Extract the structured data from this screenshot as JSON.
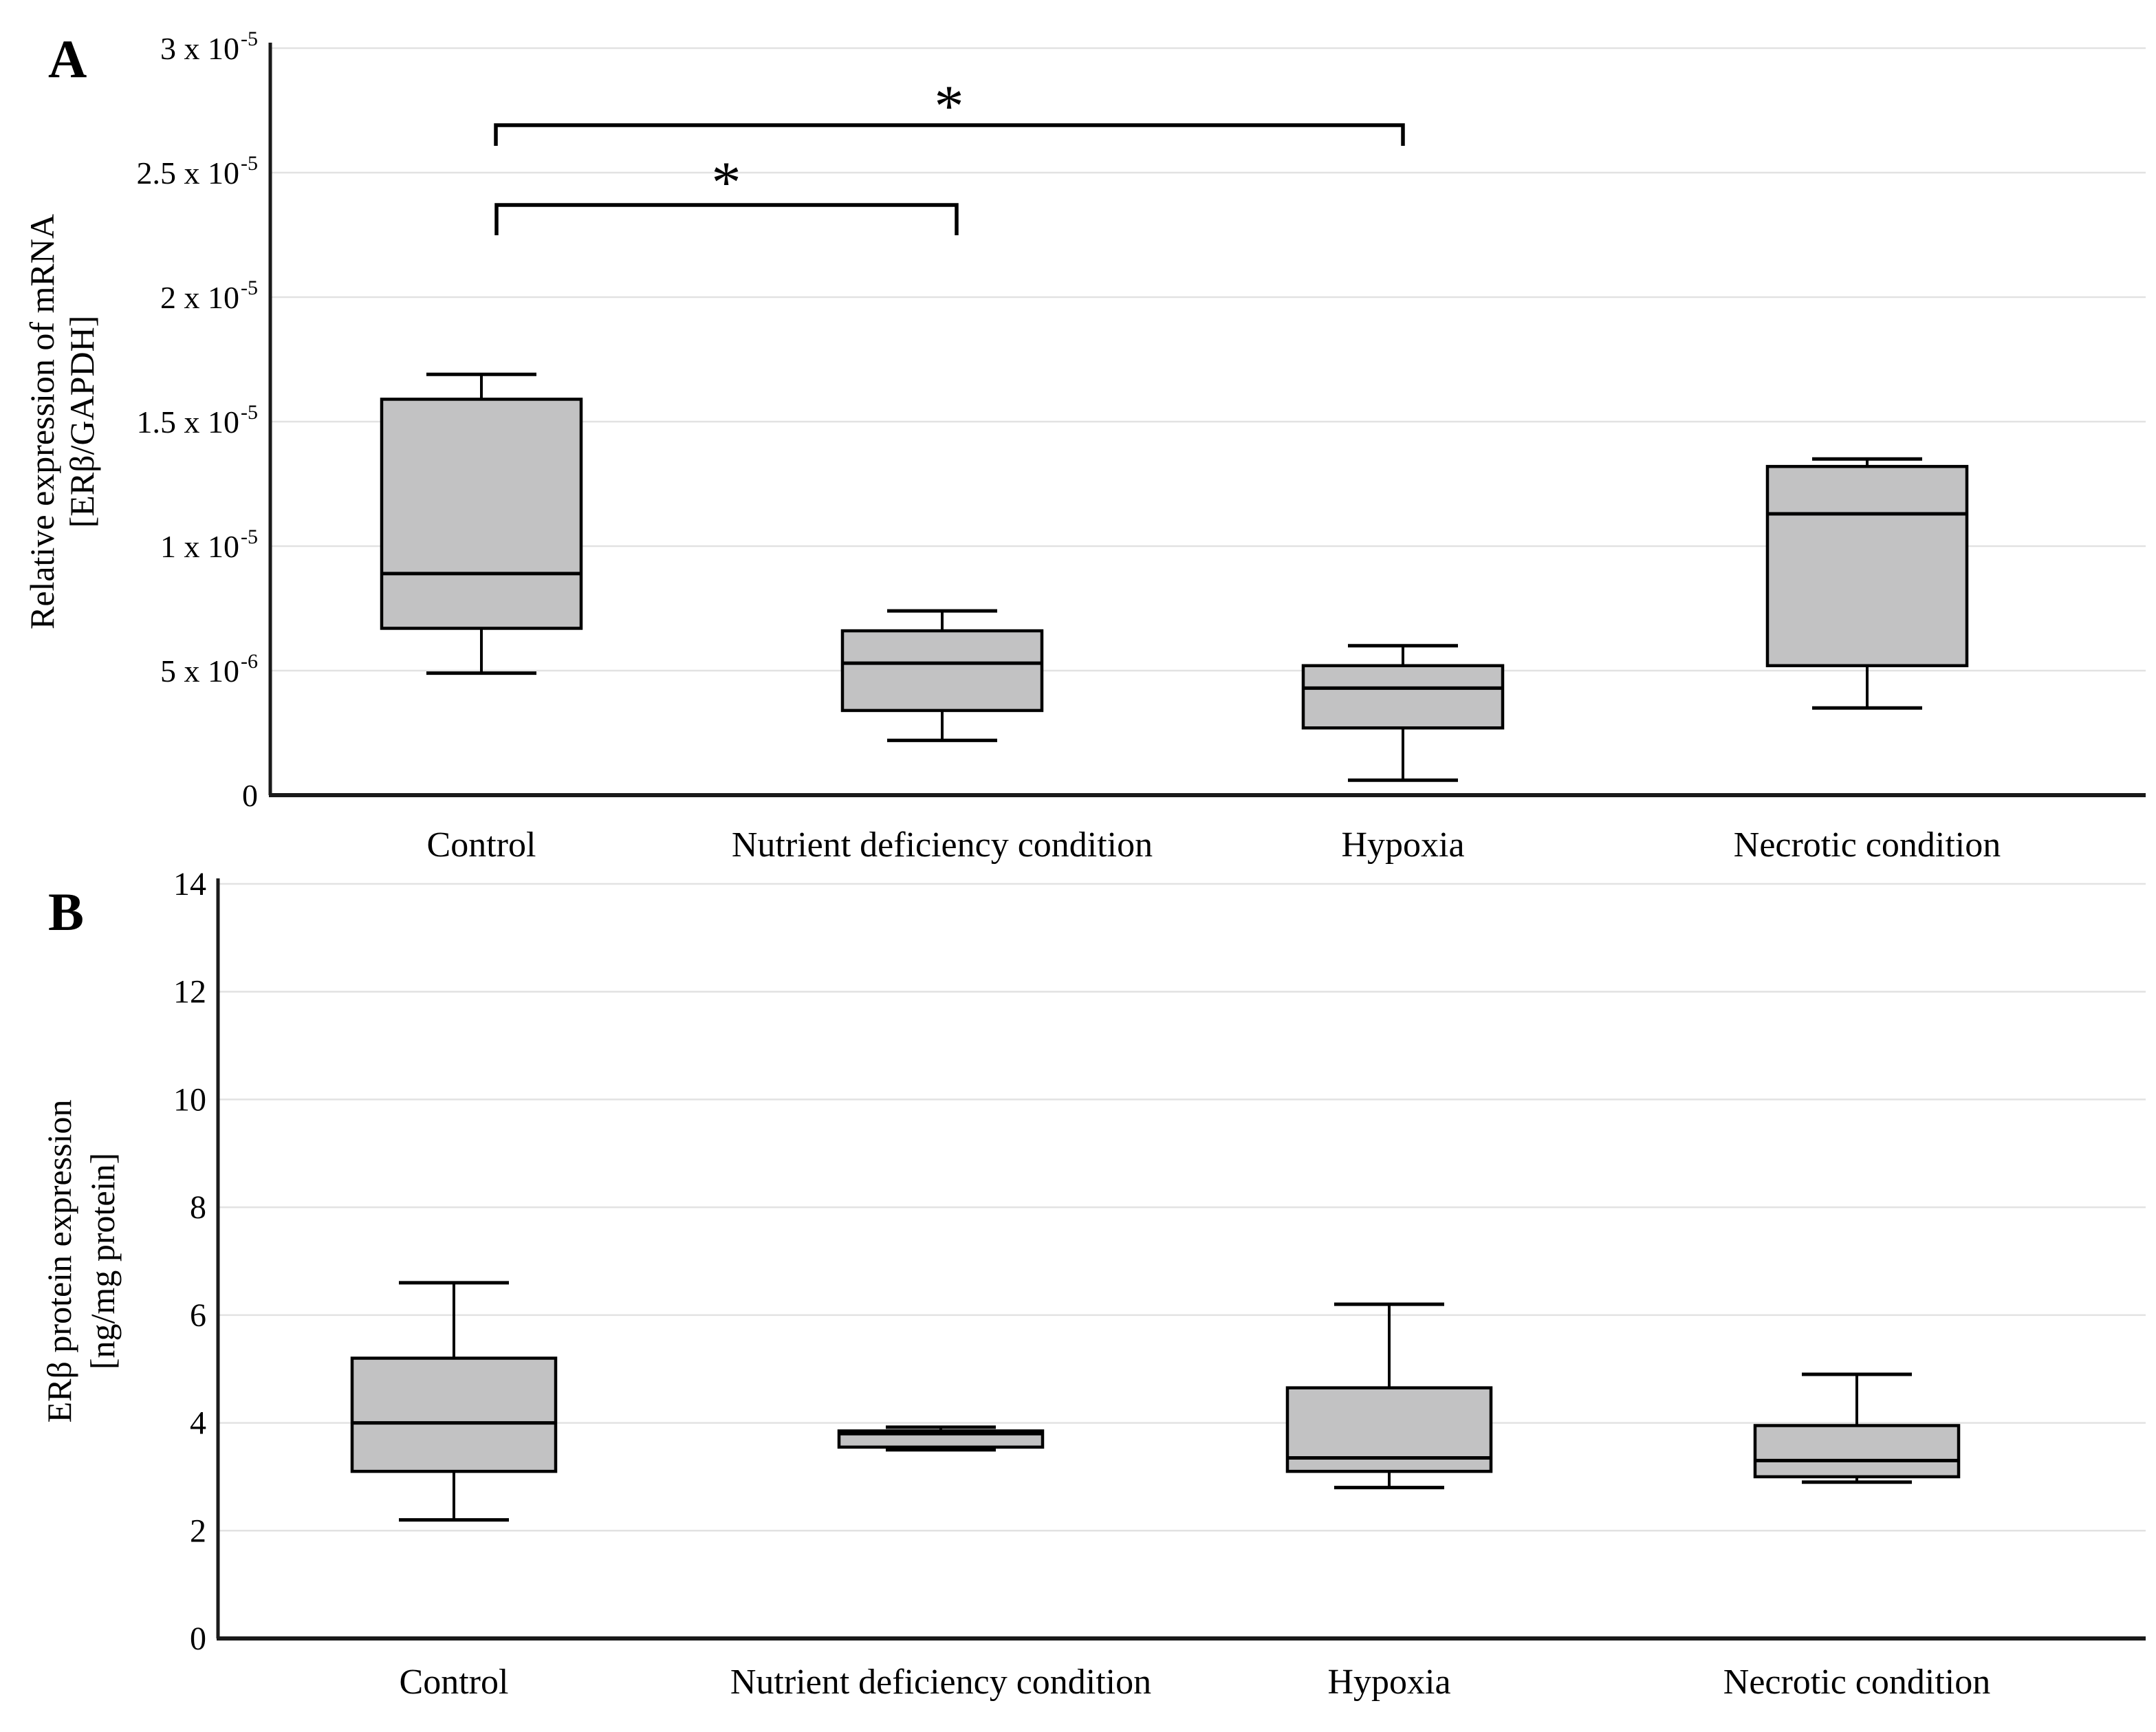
{
  "colors": {
    "background": "#ffffff",
    "box_fill": "#c2c2c3",
    "box_stroke": "#000000",
    "gridline": "#e2e2e2",
    "axis": "#1a1a1a",
    "text": "#000000"
  },
  "chart_data": [
    {
      "type": "boxplot",
      "panel_label": "A",
      "ylabel_lines": [
        "Relative expression of mRNA",
        "[ERβ/GAPDH]"
      ],
      "ylabel": "Relative expression of mRNA [ERβ/GAPDH]",
      "ylim": [
        0,
        3e-05
      ],
      "grid": true,
      "legend": false,
      "y_ticks": [
        {
          "value": 3e-05,
          "label": "3 x 10",
          "exp": "-5"
        },
        {
          "value": 2.5e-05,
          "label": "2.5 x 10",
          "exp": "-5"
        },
        {
          "value": 2e-05,
          "label": "2 x 10",
          "exp": "-5"
        },
        {
          "value": 1.5e-05,
          "label": "1.5 x 10",
          "exp": "-5"
        },
        {
          "value": 1e-05,
          "label": "1 x 10",
          "exp": "-5"
        },
        {
          "value": 5e-06,
          "label": "5 x 10",
          "exp": "-6"
        },
        {
          "value": 0,
          "label": "0",
          "exp": ""
        }
      ],
      "categories": [
        "Control",
        "Nutrient deficiency condition",
        "Hypoxia",
        "Necrotic condition"
      ],
      "series": [
        {
          "name": "Control",
          "whisker_low": 4.9e-06,
          "q1": 6.7e-06,
          "median": 8.9e-06,
          "q3": 1.59e-05,
          "whisker_high": 1.69e-05
        },
        {
          "name": "Nutrient deficiency condition",
          "whisker_low": 2.2e-06,
          "q1": 3.4e-06,
          "median": 5.3e-06,
          "q3": 6.6e-06,
          "whisker_high": 7.4e-06
        },
        {
          "name": "Hypoxia",
          "whisker_low": 6e-07,
          "q1": 2.7e-06,
          "median": 4.3e-06,
          "q3": 5.2e-06,
          "whisker_high": 6e-06
        },
        {
          "name": "Necrotic condition",
          "whisker_low": 3.5e-06,
          "q1": 5.2e-06,
          "median": 1.13e-05,
          "q3": 1.32e-05,
          "whisker_high": 1.35e-05
        }
      ],
      "annotations": [
        {
          "type": "significance-bracket",
          "from": "Control",
          "to": "Nutrient deficiency condition",
          "label": "*"
        },
        {
          "type": "significance-bracket",
          "from": "Control",
          "to": "Hypoxia",
          "label": "*"
        }
      ]
    },
    {
      "type": "boxplot",
      "panel_label": "B",
      "ylabel_lines": [
        "ERβ  protein expression",
        "[ng/mg protein]"
      ],
      "ylabel": "ERβ protein expression [ng/mg protein]",
      "ylim": [
        0,
        14
      ],
      "grid": true,
      "legend": false,
      "y_ticks": [
        {
          "value": 14,
          "label": "14",
          "exp": ""
        },
        {
          "value": 12,
          "label": "12",
          "exp": ""
        },
        {
          "value": 10,
          "label": "10",
          "exp": ""
        },
        {
          "value": 8,
          "label": "8",
          "exp": ""
        },
        {
          "value": 6,
          "label": "6",
          "exp": ""
        },
        {
          "value": 4,
          "label": "4",
          "exp": ""
        },
        {
          "value": 2,
          "label": "2",
          "exp": ""
        },
        {
          "value": 0,
          "label": "0",
          "exp": ""
        }
      ],
      "categories": [
        "Control",
        "Nutrient deficiency condition",
        "Hypoxia",
        "Necrotic condition"
      ],
      "series": [
        {
          "name": "Control",
          "whisker_low": 2.2,
          "q1": 3.1,
          "median": 4.0,
          "q3": 5.2,
          "whisker_high": 6.6
        },
        {
          "name": "Nutrient deficiency condition",
          "whisker_low": 3.5,
          "q1": 3.55,
          "median": 3.8,
          "q3": 3.85,
          "whisker_high": 3.92
        },
        {
          "name": "Hypoxia",
          "whisker_low": 2.8,
          "q1": 3.1,
          "median": 3.35,
          "q3": 4.65,
          "whisker_high": 6.2
        },
        {
          "name": "Necrotic condition",
          "whisker_low": 2.9,
          "q1": 3.0,
          "median": 3.3,
          "q3": 3.95,
          "whisker_high": 4.9
        }
      ],
      "annotations": []
    }
  ]
}
